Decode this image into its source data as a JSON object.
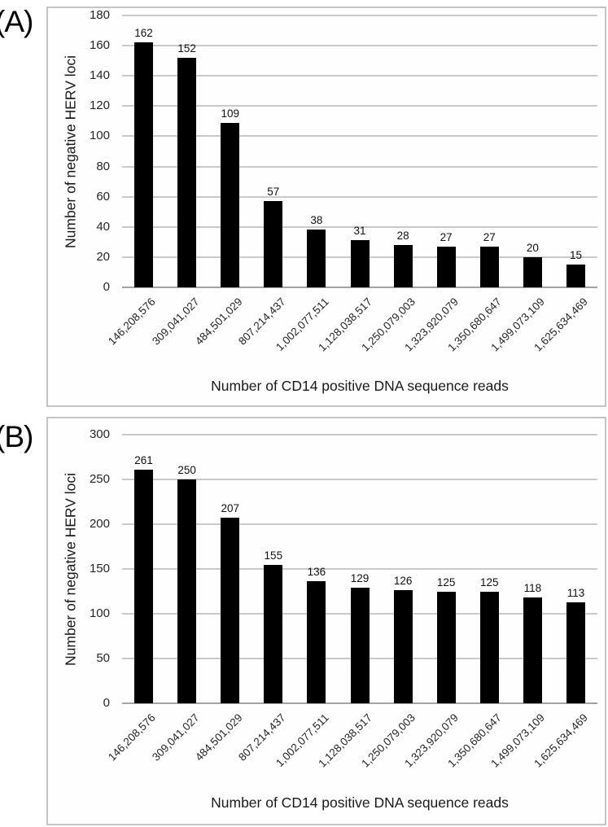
{
  "figure": {
    "panel_a_label": "(A)",
    "panel_b_label": "(B)"
  },
  "colors": {
    "bar": "#000000",
    "gridline": "#c9c9c9",
    "axis_line": "#a3a3a3",
    "box_border": "#c4c4c4",
    "text": "#262626"
  },
  "chart_data": [
    {
      "type": "bar",
      "panel_label": "(A)",
      "title": "",
      "xlabel": "Number of CD14 positive DNA sequence reads",
      "ylabel": "Number of negative HERV loci",
      "categories": [
        "146,208,576",
        "309,041,027",
        "484,501,029",
        "807,214,437",
        "1,002,077,511",
        "1,128,038,517",
        "1,250,079,003",
        "1,323,920,079",
        "1,350,680,647",
        "1,499,073,109",
        "1,625,634,469"
      ],
      "values": [
        162,
        152,
        109,
        57,
        38,
        31,
        28,
        27,
        27,
        20,
        15
      ],
      "data_labels": [
        "162",
        "152",
        "109",
        "57",
        "38",
        "31",
        "28",
        "27",
        "27",
        "20",
        "15"
      ],
      "ylim": [
        0,
        180
      ],
      "y_ticks": [
        0,
        20,
        40,
        60,
        80,
        100,
        120,
        140,
        160,
        180
      ],
      "grid": true,
      "legend": false,
      "bar_color": "#000000"
    },
    {
      "type": "bar",
      "panel_label": "(B)",
      "title": "",
      "xlabel": "Number of CD14 positive DNA sequence reads",
      "ylabel": "Number of negative HERV loci",
      "categories": [
        "146,208,576",
        "309,041,027",
        "484,501,029",
        "807,214,437",
        "1,002,077,511",
        "1,128,038,517",
        "1,250,079,003",
        "1,323,920,079",
        "1,350,680,647",
        "1,499,073,109",
        "1,625,634,469"
      ],
      "values": [
        261,
        250,
        207,
        155,
        136,
        129,
        126,
        125,
        125,
        118,
        113
      ],
      "data_labels": [
        "261",
        "250",
        "207",
        "155",
        "136",
        "129",
        "126",
        "125",
        "125",
        "118",
        "113"
      ],
      "ylim": [
        0,
        300
      ],
      "y_ticks": [
        0,
        50,
        100,
        150,
        200,
        250,
        300
      ],
      "grid": true,
      "legend": false,
      "bar_color": "#000000"
    }
  ]
}
